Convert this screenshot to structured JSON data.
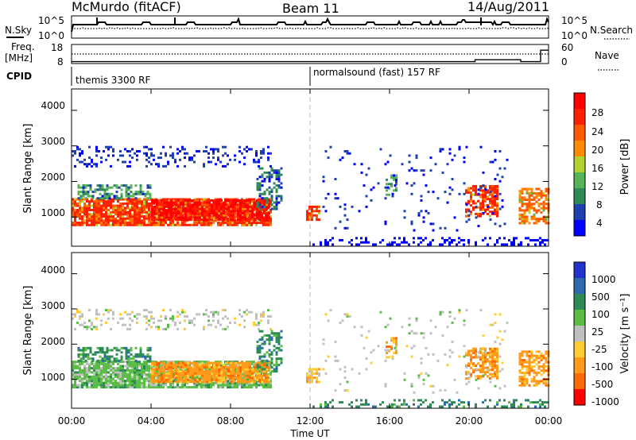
{
  "header": {
    "station": "McMurdo (fitACF)",
    "beam": "Beam 11",
    "date": "14/Aug/2011"
  },
  "top_panel": {
    "left_label": "N.Sky",
    "right_label": "N.Search",
    "left_ticks": [
      "10^5",
      "10^0"
    ],
    "right_ticks": [
      "10^5",
      "10^0"
    ]
  },
  "freq_panel": {
    "left_label_1": "Freq.",
    "left_label_2": "[MHz]",
    "right_label": "Nave",
    "left_ticks": [
      "18",
      "8"
    ],
    "right_ticks": [
      "60",
      "0"
    ]
  },
  "cpid": {
    "label": "CPID",
    "modes": [
      "themis 3300 RF",
      "normalsound (fast) 157 RF"
    ]
  },
  "power_panel": {
    "ylabel": "Slant Range [km]",
    "yticks": [
      "4000",
      "3000",
      "2000",
      "1000"
    ],
    "colorbar_label": "Power [dB]",
    "colorbar_ticks": [
      "28",
      "24",
      "20",
      "16",
      "12",
      "8",
      "4"
    ],
    "colors": [
      "#0000ff",
      "#2040b0",
      "#2e8b57",
      "#55b455",
      "#b4d232",
      "#ff8c00",
      "#ff5a00",
      "#ff2000",
      "#ff0000"
    ]
  },
  "velocity_panel": {
    "ylabel": "Slant Range [km]",
    "yticks": [
      "4000",
      "3000",
      "2000",
      "1000"
    ],
    "colorbar_label": "Velocity [m s⁻¹]",
    "colorbar_ticks": [
      "1000",
      "500",
      "100",
      "25",
      "-25",
      "-100",
      "-500",
      "-1000"
    ],
    "colors": [
      "#2233cc",
      "#2e6ab0",
      "#2e8b57",
      "#5abe46",
      "#c0c0c0",
      "#ffcc33",
      "#ff9a1a",
      "#ff6a00",
      "#ff0000"
    ]
  },
  "x_axis": {
    "label": "Time UT",
    "ticks": [
      "00:00",
      "04:00",
      "08:00",
      "12:00",
      "16:00",
      "20:00",
      "00:00"
    ]
  },
  "chart_data": [
    {
      "type": "line",
      "title": "McMurdo (fitACF)  Beam 11  14/Aug/2011",
      "series": [
        {
          "name": "N.Sky"
        },
        {
          "name": "N.Search"
        }
      ],
      "ylim_labels": [
        "10^0",
        "10^5"
      ],
      "xlim": [
        "00:00",
        "24:00"
      ]
    },
    {
      "type": "line",
      "series": [
        {
          "name": "Freq. [MHz]",
          "x": [
            0,
            20.3,
            22.6,
            23.6,
            24
          ],
          "values": [
            9,
            10,
            9,
            15,
            15
          ]
        },
        {
          "name": "Nave"
        }
      ],
      "ylim": [
        8,
        18
      ]
    },
    {
      "type": "heatmap",
      "xlabel": "Time UT",
      "ylabel": "Slant Range [km]",
      "ylim": [
        180,
        4600
      ],
      "colorbar": {
        "label": "Power [dB]",
        "range": [
          0,
          32
        ],
        "ticks": [
          4,
          8,
          12,
          16,
          20,
          24,
          28
        ]
      }
    },
    {
      "type": "heatmap",
      "xlabel": "Time UT",
      "ylabel": "Slant Range [km]",
      "ylim": [
        180,
        4600
      ],
      "colorbar": {
        "label": "Velocity [m s⁻¹]",
        "ticks": [
          -1000,
          -500,
          -100,
          -25,
          25,
          100,
          500,
          1000
        ]
      }
    }
  ]
}
